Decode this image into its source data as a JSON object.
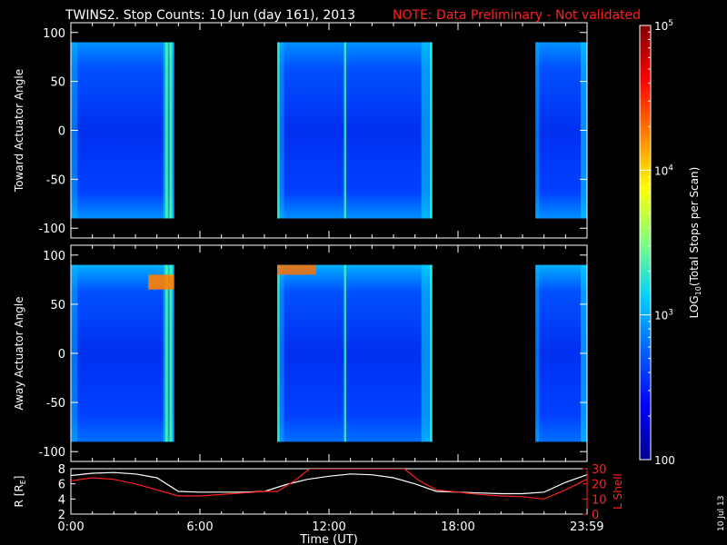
{
  "header": {
    "title": "TWINS2. Stop Counts: 10 Jun (day 161), 2013",
    "note": "NOTE: Data Preliminary - Not validated",
    "note_color": "#ff2020"
  },
  "footer_date": "10 Jul 13",
  "chart_data": [
    {
      "type": "heatmap",
      "title": "",
      "ylabel": "Toward Actuator Angle",
      "xlim": [
        0,
        24
      ],
      "ylim": [
        -110,
        110
      ],
      "yticks": [
        100,
        50,
        0,
        -50,
        -100
      ],
      "data_blocks_hours": [
        [
          0.0,
          4.8
        ],
        [
          9.6,
          16.8
        ],
        [
          21.6,
          23.99
        ]
      ],
      "data_ylim": [
        -90,
        90
      ],
      "bright_stripes_hours": [
        9.65,
        12.75,
        16.75
      ],
      "hot_spot": null
    },
    {
      "type": "heatmap",
      "title": "",
      "ylabel": "Away Actuator Angle",
      "xlabel": "",
      "xlim": [
        0,
        24
      ],
      "ylim": [
        -110,
        110
      ],
      "yticks": [
        100,
        50,
        0,
        -50,
        -100
      ],
      "data_blocks_hours": [
        [
          0.0,
          4.8
        ],
        [
          9.6,
          16.8
        ],
        [
          21.6,
          23.99
        ]
      ],
      "data_ylim": [
        -90,
        90
      ],
      "bright_stripes_hours": [
        9.65,
        12.75,
        16.75
      ],
      "hot_spot": {
        "x": [
          3.6,
          4.8
        ],
        "y": [
          65,
          80
        ],
        "x2": [
          9.6,
          11.4
        ],
        "y2": [
          80,
          90
        ]
      }
    },
    {
      "type": "line",
      "ylabel": "R [R",
      "ylabel_sub": "E",
      "ylabel_end": "]",
      "y2label": "L Shell",
      "xlabel": "Time (UT)",
      "xticks": [
        "0:00",
        "6:00",
        "12:00",
        "18:00",
        "23:59"
      ],
      "xtick_hours": [
        0,
        6,
        12,
        18,
        23.99
      ],
      "ylim": [
        2,
        8
      ],
      "yticks": [
        2,
        4,
        6,
        8
      ],
      "y2lim": [
        0,
        30
      ],
      "y2ticks": [
        0,
        10,
        20,
        30
      ],
      "series": [
        {
          "color": "#ffffff",
          "x": [
            0,
            1,
            2,
            3,
            4,
            5,
            6,
            7,
            8,
            9,
            10,
            11,
            12,
            13,
            14,
            15,
            16,
            17,
            18,
            19,
            20,
            21,
            22,
            23,
            23.99
          ],
          "y": [
            7.1,
            7.4,
            7.5,
            7.3,
            6.8,
            5.0,
            4.9,
            4.9,
            4.9,
            5.0,
            5.9,
            6.6,
            7.0,
            7.3,
            7.2,
            6.8,
            6.0,
            5.0,
            4.9,
            4.8,
            4.7,
            4.7,
            4.9,
            6.2,
            7.2
          ]
        },
        {
          "color": "#ff2020",
          "axis": "right",
          "x": [
            0,
            1,
            2,
            3,
            4,
            5,
            6,
            7,
            8,
            9,
            9.6,
            10.4,
            11.1,
            15.5,
            16.2,
            17,
            18,
            19,
            20,
            21,
            22,
            23,
            23.99
          ],
          "y": [
            22,
            24,
            23,
            20,
            16,
            12,
            12,
            13,
            14,
            15,
            15,
            22,
            30,
            30,
            22,
            16,
            14.5,
            13,
            12,
            11.5,
            10,
            16,
            23
          ]
        }
      ]
    }
  ],
  "colorbar": {
    "label": "LOG10(Total Stops per Scan)",
    "label_main": "LOG",
    "label_sub": "10",
    "label_rest": "(Total Stops per Scan)",
    "range_log": [
      2,
      5
    ],
    "ticks": [
      {
        "base": "10",
        "exp": "5",
        "log": 5
      },
      {
        "base": "10",
        "exp": "4",
        "log": 4
      },
      {
        "base": "10",
        "exp": "3",
        "log": 3
      },
      {
        "base": "100",
        "exp": "",
        "log": 2
      }
    ],
    "colors": [
      "#00008f",
      "#0000ff",
      "#0060ff",
      "#00d0ff",
      "#80ff80",
      "#ffff00",
      "#ff8000",
      "#ff0000",
      "#800000"
    ]
  }
}
